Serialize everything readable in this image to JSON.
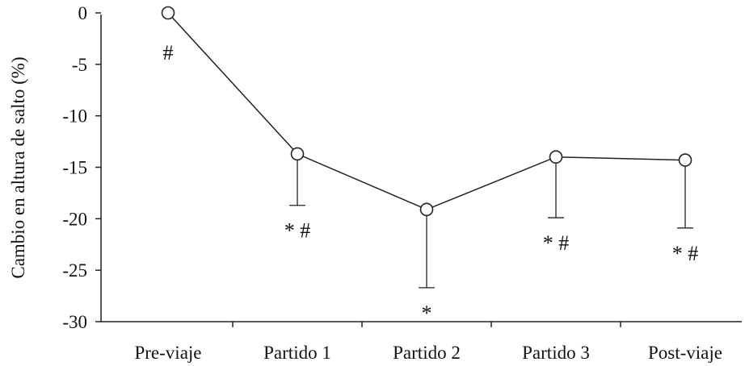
{
  "chart_data": {
    "type": "line",
    "title": "",
    "ylabel": "Cambio en altura de salto (%)",
    "xlabel": "",
    "categories": [
      "Pre-viaje",
      "Partido 1",
      "Partido 2",
      "Partido 3",
      "Post-viaje"
    ],
    "ylim": [
      -30,
      0
    ],
    "yticks": [
      0,
      -5,
      -10,
      -15,
      -20,
      -25,
      -30
    ],
    "grid": false,
    "legend": "none",
    "series": [
      {
        "values": [
          0,
          -13.7,
          -19.1,
          -14.0,
          -14.3
        ],
        "error_lower": [
          0,
          5.0,
          7.6,
          5.9,
          6.6
        ]
      }
    ],
    "annotations": [
      "#",
      "* #",
      "*",
      "* #",
      "* #"
    ],
    "colors": {
      "line": "#222222",
      "marker_fill": "#ffffff",
      "axis": "#222222",
      "text": "#111111"
    }
  }
}
